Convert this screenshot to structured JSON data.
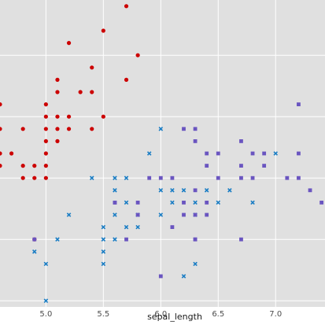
{
  "chart_data": {
    "type": "scatter",
    "xlabel": "sepal_length",
    "ylabel": "",
    "xlim": [
      4.6,
      7.43
    ],
    "ylim": [
      1.95,
      4.45
    ],
    "xticks": [
      5.0,
      5.5,
      6.0,
      6.5,
      7.0
    ],
    "xtick_labels": [
      "5.0",
      "5.5",
      "6.0",
      "6.5",
      "7.0"
    ],
    "yticks": [
      2.0,
      2.5,
      3.0,
      3.5,
      4.0
    ],
    "grid": true,
    "background": "#e0e0e0",
    "grid_color": "#ffffff",
    "series": [
      {
        "color": "#cc0000",
        "marker": "circle",
        "points": [
          [
            5.7,
            4.4
          ],
          [
            5.5,
            4.2
          ],
          [
            5.2,
            4.1
          ],
          [
            5.8,
            4.0
          ],
          [
            5.4,
            3.9
          ],
          [
            5.1,
            3.8
          ],
          [
            5.7,
            3.8
          ],
          [
            5.1,
            3.7
          ],
          [
            5.3,
            3.7
          ],
          [
            5.4,
            3.7
          ],
          [
            4.6,
            3.6
          ],
          [
            5.0,
            3.6
          ],
          [
            5.0,
            3.5
          ],
          [
            5.1,
            3.5
          ],
          [
            5.2,
            3.5
          ],
          [
            5.5,
            3.5
          ],
          [
            4.6,
            3.4
          ],
          [
            4.8,
            3.4
          ],
          [
            5.0,
            3.4
          ],
          [
            5.1,
            3.4
          ],
          [
            5.2,
            3.4
          ],
          [
            5.4,
            3.4
          ],
          [
            5.0,
            3.3
          ],
          [
            5.1,
            3.3
          ],
          [
            4.6,
            3.2
          ],
          [
            4.7,
            3.2
          ],
          [
            5.0,
            3.2
          ],
          [
            4.6,
            3.1
          ],
          [
            4.8,
            3.1
          ],
          [
            4.9,
            3.1
          ],
          [
            5.0,
            3.1
          ],
          [
            4.8,
            3.0
          ],
          [
            4.9,
            3.0
          ],
          [
            5.0,
            3.0
          ],
          [
            4.9,
            2.5
          ]
        ]
      },
      {
        "color": "#1a7dc4",
        "marker": "x",
        "points": [
          [
            6.0,
            3.4
          ],
          [
            5.9,
            3.2
          ],
          [
            7.0,
            3.2
          ],
          [
            6.6,
            2.9
          ],
          [
            5.4,
            3.0
          ],
          [
            5.6,
            3.0
          ],
          [
            5.7,
            3.0
          ],
          [
            6.0,
            2.9
          ],
          [
            6.1,
            2.9
          ],
          [
            6.2,
            2.9
          ],
          [
            6.4,
            2.9
          ],
          [
            5.6,
            2.9
          ],
          [
            6.1,
            2.8
          ],
          [
            6.3,
            2.8
          ],
          [
            6.5,
            2.8
          ],
          [
            6.8,
            2.8
          ],
          [
            5.7,
            2.8
          ],
          [
            5.6,
            2.7
          ],
          [
            5.8,
            2.7
          ],
          [
            5.2,
            2.7
          ],
          [
            6.0,
            2.7
          ],
          [
            6.3,
            2.7
          ],
          [
            5.5,
            2.6
          ],
          [
            5.8,
            2.6
          ],
          [
            5.7,
            2.6
          ],
          [
            5.1,
            2.5
          ],
          [
            5.5,
            2.5
          ],
          [
            5.6,
            2.5
          ],
          [
            4.9,
            2.4
          ],
          [
            5.5,
            2.4
          ],
          [
            5.0,
            2.3
          ],
          [
            5.5,
            2.3
          ],
          [
            6.3,
            2.3
          ],
          [
            6.2,
            2.2
          ],
          [
            5.0,
            2.0
          ]
        ]
      },
      {
        "color": "#6a55c0",
        "marker": "square",
        "points": [
          [
            7.2,
            3.6
          ],
          [
            6.2,
            3.4
          ],
          [
            6.3,
            3.4
          ],
          [
            6.3,
            3.3
          ],
          [
            6.7,
            3.3
          ],
          [
            6.4,
            3.2
          ],
          [
            6.5,
            3.2
          ],
          [
            6.8,
            3.2
          ],
          [
            6.9,
            3.2
          ],
          [
            7.2,
            3.2
          ],
          [
            6.4,
            3.1
          ],
          [
            6.7,
            3.1
          ],
          [
            6.9,
            3.1
          ],
          [
            5.9,
            3.0
          ],
          [
            6.0,
            3.0
          ],
          [
            6.1,
            3.0
          ],
          [
            6.5,
            3.0
          ],
          [
            6.7,
            3.0
          ],
          [
            6.8,
            3.0
          ],
          [
            7.1,
            3.0
          ],
          [
            7.2,
            3.0
          ],
          [
            6.3,
            2.9
          ],
          [
            7.3,
            2.9
          ],
          [
            5.6,
            2.8
          ],
          [
            5.8,
            2.8
          ],
          [
            6.2,
            2.8
          ],
          [
            6.4,
            2.8
          ],
          [
            6.3,
            2.7
          ],
          [
            6.4,
            2.7
          ],
          [
            6.2,
            2.7
          ],
          [
            7.4,
            2.8
          ],
          [
            5.8,
            2.7
          ],
          [
            6.3,
            2.5
          ],
          [
            6.7,
            2.5
          ],
          [
            5.7,
            2.5
          ],
          [
            6.1,
            2.6
          ],
          [
            6.0,
            2.2
          ],
          [
            4.9,
            2.5
          ],
          [
            6.3,
            2.5
          ],
          [
            5.6,
            2.8
          ]
        ]
      }
    ]
  }
}
